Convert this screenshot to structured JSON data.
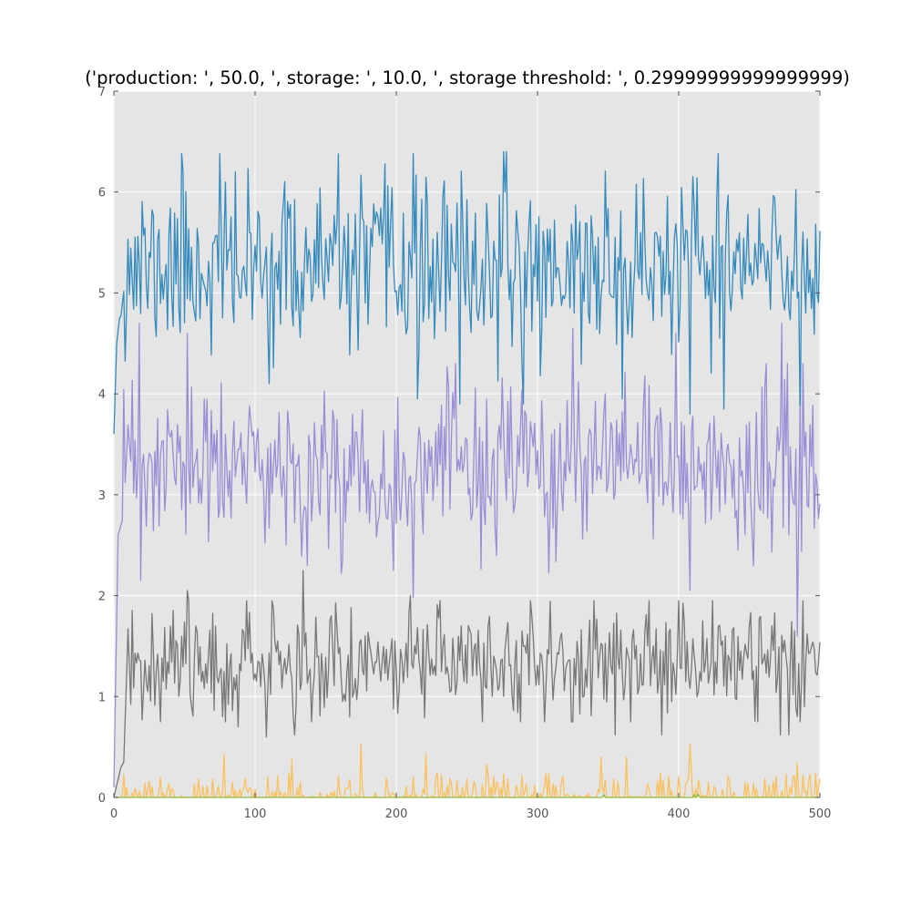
{
  "chart_data": {
    "type": "line",
    "title": "('production: ', 50.0, ', storage: ', 10.0, ', storage threshold: ', 0.29999999999999999)",
    "xlabel": "",
    "ylabel": "",
    "xlim": [
      0,
      500
    ],
    "ylim": [
      0,
      7
    ],
    "xticks": [
      "0",
      "100",
      "200",
      "300",
      "400",
      "500"
    ],
    "yticks": [
      "0",
      "1",
      "2",
      "3",
      "4",
      "5",
      "6",
      "7"
    ],
    "grid": true,
    "background": "#e5e5e5",
    "series": [
      {
        "color": "#348abd",
        "style": "noisy",
        "seed": 11,
        "start": [
          [
            0,
            3.6
          ],
          [
            2,
            4.5
          ],
          [
            4,
            4.75
          ]
        ],
        "mean": 5.25,
        "sd": 0.42,
        "min": 4.1,
        "max": 6.4,
        "drops": [
          [
            215,
            3.95
          ],
          [
            245,
            3.9
          ],
          [
            290,
            3.9
          ],
          [
            360,
            3.95
          ],
          [
            408,
            3.8
          ],
          [
            432,
            3.85
          ],
          [
            486,
            3.75
          ]
        ],
        "peaks": [
          [
            48,
            6.38
          ],
          [
            75,
            6.38
          ],
          [
            212,
            6.38
          ],
          [
            428,
            6.38
          ]
        ]
      },
      {
        "color": "#988ed5",
        "style": "noisy",
        "seed": 23,
        "start": [
          [
            0,
            0.1
          ],
          [
            3,
            2.6
          ],
          [
            6,
            2.75
          ]
        ],
        "mean": 3.25,
        "sd": 0.4,
        "min": 2.2,
        "max": 4.3,
        "drops": [
          [
            19,
            2.15
          ],
          [
            137,
            2.3
          ],
          [
            198,
            2.25
          ],
          [
            212,
            1.98
          ],
          [
            408,
            2.05
          ],
          [
            484,
            1.6
          ]
        ],
        "peaks": [
          [
            18,
            4.7
          ],
          [
            52,
            4.6
          ],
          [
            325,
            4.65
          ],
          [
            398,
            4.6
          ],
          [
            473,
            4.7
          ],
          [
            488,
            4.3
          ]
        ]
      },
      {
        "color": "#777777",
        "style": "noisy",
        "seed": 37,
        "start": [
          [
            0,
            0.0
          ],
          [
            5,
            0.3
          ],
          [
            7,
            0.35
          ],
          [
            9,
            1.2
          ]
        ],
        "mean": 1.35,
        "sd": 0.28,
        "min": 0.75,
        "max": 1.95,
        "drops": [
          [
            88,
            0.7
          ],
          [
            108,
            0.6
          ],
          [
            128,
            0.62
          ],
          [
            305,
            0.75
          ],
          [
            355,
            0.62
          ],
          [
            388,
            0.62
          ],
          [
            472,
            0.62
          ],
          [
            478,
            0.62
          ]
        ],
        "peaks": [
          [
            134,
            2.25
          ],
          [
            52,
            2.05
          ],
          [
            210,
            2.0
          ]
        ]
      },
      {
        "color": "#fbc15e",
        "style": "spiky",
        "seed": 51,
        "mean": 0.07,
        "min": 0.0,
        "max": 0.45,
        "peaks": [
          [
            78,
            0.43
          ],
          [
            126,
            0.38
          ],
          [
            175,
            0.53
          ],
          [
            221,
            0.43
          ],
          [
            264,
            0.33
          ],
          [
            345,
            0.4
          ],
          [
            363,
            0.4
          ],
          [
            408,
            0.53
          ],
          [
            484,
            0.34
          ]
        ]
      },
      {
        "color": "#8eba42",
        "style": "flat",
        "points": [
          [
            0,
            0
          ],
          [
            346,
            0
          ],
          [
            347,
            0.03
          ],
          [
            348,
            0
          ],
          [
            410,
            0
          ],
          [
            411,
            0.03
          ],
          [
            412,
            0
          ],
          [
            414,
            0.03
          ],
          [
            415,
            0
          ],
          [
            500,
            0
          ]
        ]
      }
    ]
  }
}
